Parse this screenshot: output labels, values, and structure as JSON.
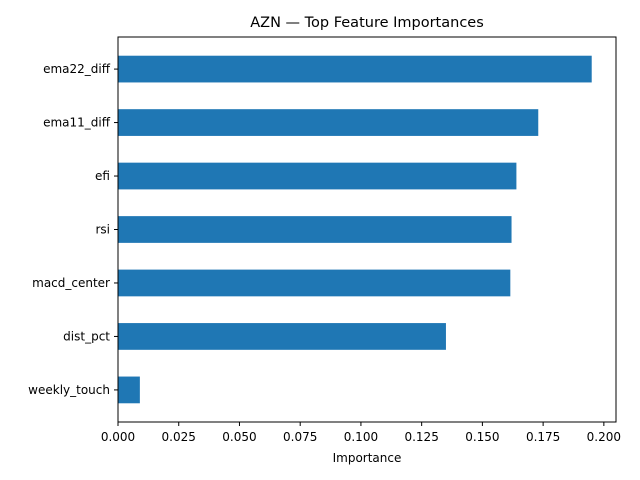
{
  "chart_data": {
    "type": "bar",
    "orientation": "horizontal",
    "title": "AZN — Top Feature Importances",
    "xlabel": "Importance",
    "ylabel": "",
    "categories": [
      "ema22_diff",
      "ema11_diff",
      "efi",
      "rsi",
      "macd_center",
      "dist_pct",
      "weekly_touch"
    ],
    "values": [
      0.195,
      0.173,
      0.164,
      0.162,
      0.1615,
      0.135,
      0.009
    ],
    "xlim": [
      0,
      0.205
    ],
    "xticks": [
      0.0,
      0.025,
      0.05,
      0.075,
      0.1,
      0.125,
      0.15,
      0.175,
      0.2
    ],
    "xtick_labels": [
      "0.000",
      "0.025",
      "0.050",
      "0.075",
      "0.100",
      "0.125",
      "0.150",
      "0.175",
      "0.200"
    ],
    "bar_color": "#1f77b4",
    "grid": false,
    "legend": "none"
  }
}
